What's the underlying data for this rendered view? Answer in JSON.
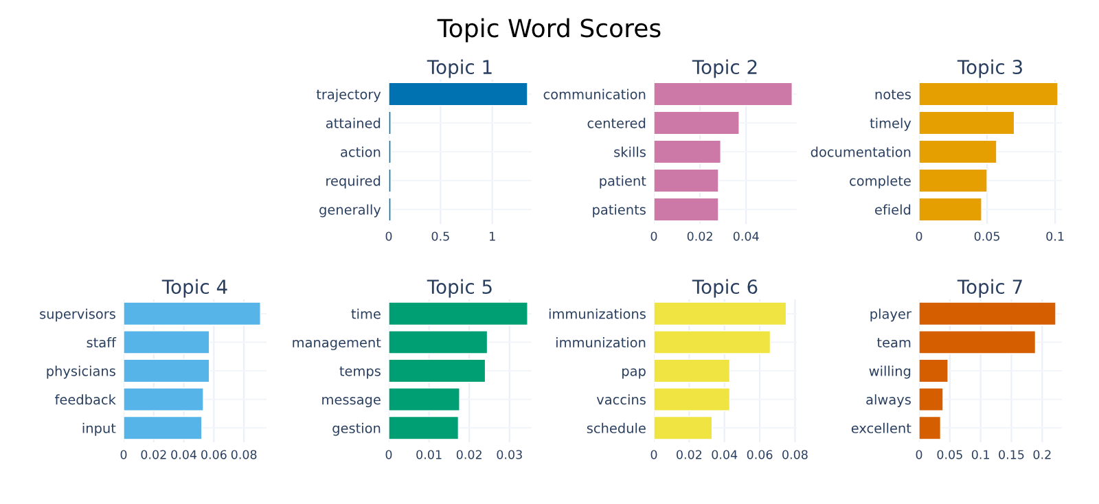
{
  "chart_data": [
    {
      "type": "bar",
      "orientation": "horizontal",
      "title": "Topic 1",
      "annotations": [
        "Topic Word Scores"
      ],
      "categories": [
        "trajectory",
        "attained",
        "action",
        "required",
        "generally"
      ],
      "values": [
        1.34,
        0.02,
        0.02,
        0.02,
        0.02
      ],
      "color": "#0072b2",
      "xlim": [
        0,
        1.38
      ],
      "xticks": [
        0,
        0.5,
        1
      ],
      "grid": true
    },
    {
      "type": "bar",
      "orientation": "horizontal",
      "title": "Topic 2",
      "categories": [
        "communication",
        "centered",
        "skills",
        "patient",
        "patients"
      ],
      "values": [
        0.06,
        0.037,
        0.029,
        0.028,
        0.028
      ],
      "color": "#cc79a7",
      "xlim": [
        0,
        0.062
      ],
      "xticks": [
        0,
        0.02,
        0.04
      ],
      "grid": true
    },
    {
      "type": "bar",
      "orientation": "horizontal",
      "title": "Topic 3",
      "categories": [
        "notes",
        "timely",
        "documentation",
        "complete",
        "efield"
      ],
      "values": [
        0.102,
        0.07,
        0.057,
        0.05,
        0.046
      ],
      "color": "#e69f00",
      "xlim": [
        0,
        0.105
      ],
      "xticks": [
        0,
        0.05,
        0.1
      ],
      "grid": true
    },
    {
      "type": "bar",
      "orientation": "horizontal",
      "title": "Topic 4",
      "categories": [
        "supervisors",
        "staff",
        "physicians",
        "feedback",
        "input"
      ],
      "values": [
        0.091,
        0.057,
        0.057,
        0.053,
        0.052
      ],
      "color": "#56b4e9",
      "xlim": [
        0,
        0.095
      ],
      "xticks": [
        0,
        0.02,
        0.04,
        0.06,
        0.08
      ],
      "grid": true
    },
    {
      "type": "bar",
      "orientation": "horizontal",
      "title": "Topic 5",
      "categories": [
        "time",
        "management",
        "temps",
        "message",
        "gestion"
      ],
      "values": [
        0.0345,
        0.0245,
        0.024,
        0.0176,
        0.0173
      ],
      "color": "#009e73",
      "xlim": [
        0,
        0.0355
      ],
      "xticks": [
        0,
        0.01,
        0.02,
        0.03
      ],
      "grid": true
    },
    {
      "type": "bar",
      "orientation": "horizontal",
      "title": "Topic 6",
      "categories": [
        "immunizations",
        "immunization",
        "pap",
        "vaccins",
        "schedule"
      ],
      "values": [
        0.075,
        0.066,
        0.043,
        0.043,
        0.033
      ],
      "color": "#f0e442",
      "xlim": [
        0,
        0.081
      ],
      "xticks": [
        0,
        0.02,
        0.04,
        0.06,
        0.08
      ],
      "grid": true
    },
    {
      "type": "bar",
      "orientation": "horizontal",
      "title": "Topic 7",
      "categories": [
        "player",
        "team",
        "willing",
        "always",
        "excellent"
      ],
      "values": [
        0.222,
        0.189,
        0.047,
        0.039,
        0.035
      ],
      "color": "#d55e00",
      "xlim": [
        0,
        0.232
      ],
      "xticks": [
        0,
        0.05,
        0.1,
        0.15,
        0.2
      ],
      "grid": true
    }
  ]
}
